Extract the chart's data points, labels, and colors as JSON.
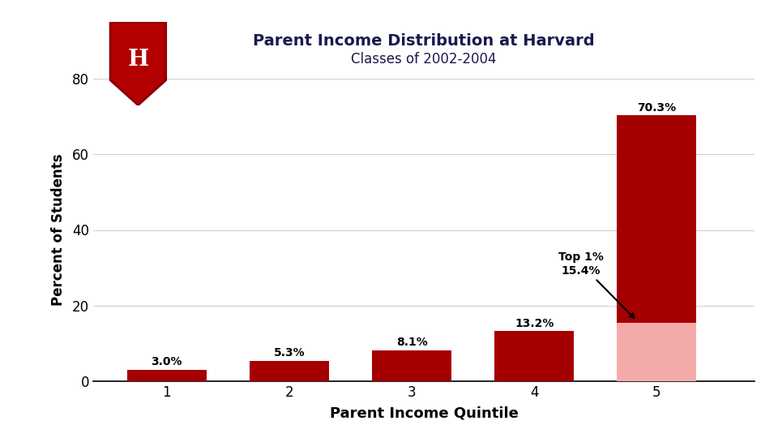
{
  "title": "Parent Income Distribution at Harvard",
  "subtitle": "Classes of 2002-2004",
  "xlabel": "Parent Income Quintile",
  "ylabel": "Percent of Students",
  "categories": [
    1,
    2,
    3,
    4,
    5
  ],
  "values": [
    3.0,
    5.3,
    8.1,
    13.2,
    70.3
  ],
  "top1_value": 15.4,
  "bar_color_dark": "#A50000",
  "bar_color_light": "#F5AAAA",
  "background_color": "#FFFFFF",
  "grid_color": "#D0D0D0",
  "ylim": [
    0,
    80
  ],
  "yticks": [
    0,
    20,
    40,
    60,
    80
  ],
  "label_values": [
    "3.0%",
    "5.3%",
    "8.1%",
    "13.2%",
    "70.3%"
  ],
  "annotation_text": "Top 1%\n15.4%",
  "bar_width": 0.65,
  "title_color": "#1a1a4e",
  "label_fontsize": 10,
  "axis_fontsize": 12,
  "title_fontsize": 14,
  "subtitle_fontsize": 12,
  "xlabel_fontsize": 13,
  "ylabel_fontsize": 12,
  "shield_color": "#B30000",
  "shield_edge_color": "#8B0000",
  "xlim_left": 0.4,
  "xlim_right": 5.8
}
